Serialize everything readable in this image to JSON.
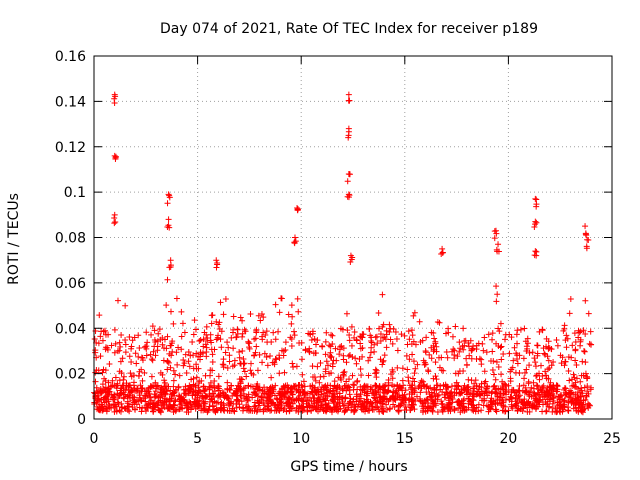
{
  "chart_data": {
    "type": "scatter",
    "title": "Day 074 of 2021, Rate Of TEC Index for receiver p189",
    "xlabel": "GPS time / hours",
    "ylabel": "ROTI / TECUs",
    "xlim": [
      0,
      25
    ],
    "ylim": [
      0,
      0.16
    ],
    "xticks": [
      0,
      5,
      10,
      15,
      20,
      25
    ],
    "xtick_labels": [
      "0",
      "5",
      "10",
      "15",
      "20",
      "25"
    ],
    "yticks": [
      0,
      0.02,
      0.04,
      0.06,
      0.08,
      0.1,
      0.12,
      0.14,
      0.16
    ],
    "ytick_labels": [
      "0",
      "0.02",
      "0.04",
      "0.06",
      "0.08",
      "0.1",
      "0.12",
      "0.14",
      "0.16"
    ],
    "grid": true,
    "marker": "+",
    "color": "#ff0000",
    "data_span_hours": [
      0,
      24
    ],
    "typical_range": [
      0.003,
      0.04
    ],
    "peaks": [
      {
        "x": 1.0,
        "y": 0.143
      },
      {
        "x": 1.0,
        "y": 0.116
      },
      {
        "x": 1.0,
        "y": 0.09
      },
      {
        "x": 3.6,
        "y": 0.099
      },
      {
        "x": 3.6,
        "y": 0.088
      },
      {
        "x": 3.7,
        "y": 0.07
      },
      {
        "x": 5.9,
        "y": 0.07
      },
      {
        "x": 9.8,
        "y": 0.093
      },
      {
        "x": 9.7,
        "y": 0.08
      },
      {
        "x": 12.3,
        "y": 0.143
      },
      {
        "x": 12.3,
        "y": 0.128
      },
      {
        "x": 12.3,
        "y": 0.108
      },
      {
        "x": 12.3,
        "y": 0.099
      },
      {
        "x": 12.4,
        "y": 0.072
      },
      {
        "x": 16.8,
        "y": 0.075
      },
      {
        "x": 19.4,
        "y": 0.083
      },
      {
        "x": 19.5,
        "y": 0.077
      },
      {
        "x": 21.3,
        "y": 0.097
      },
      {
        "x": 21.3,
        "y": 0.087
      },
      {
        "x": 21.3,
        "y": 0.074
      },
      {
        "x": 23.7,
        "y": 0.085
      },
      {
        "x": 23.8,
        "y": 0.079
      }
    ]
  }
}
